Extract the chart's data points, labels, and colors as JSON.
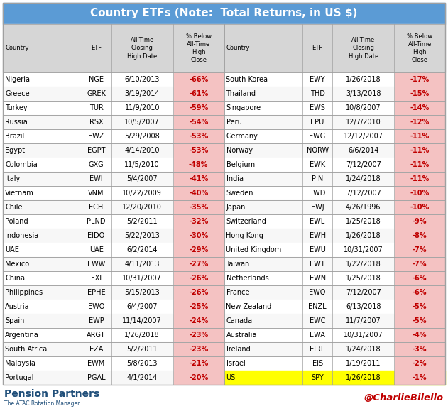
{
  "title": "Country ETFs (Note:  Total Returns, in US $)",
  "title_bg": "#5b9bd5",
  "title_color": "#ffffff",
  "header_bg": "#d6d6d6",
  "pct_neg_bg": "#f4c2c2",
  "pct_neg_color": "#c00000",
  "us_bg": "#ffff00",
  "border_color": "#a0a0a0",
  "left_data": [
    [
      "Nigeria",
      "NGE",
      "6/10/2013",
      "-66%"
    ],
    [
      "Greece",
      "GREK",
      "3/19/2014",
      "-61%"
    ],
    [
      "Turkey",
      "TUR",
      "11/9/2010",
      "-59%"
    ],
    [
      "Russia",
      "RSX",
      "10/5/2007",
      "-54%"
    ],
    [
      "Brazil",
      "EWZ",
      "5/29/2008",
      "-53%"
    ],
    [
      "Egypt",
      "EGPT",
      "4/14/2010",
      "-53%"
    ],
    [
      "Colombia",
      "GXG",
      "11/5/2010",
      "-48%"
    ],
    [
      "Italy",
      "EWI",
      "5/4/2007",
      "-41%"
    ],
    [
      "Vietnam",
      "VNM",
      "10/22/2009",
      "-40%"
    ],
    [
      "Chile",
      "ECH",
      "12/20/2010",
      "-35%"
    ],
    [
      "Poland",
      "PLND",
      "5/2/2011",
      "-32%"
    ],
    [
      "Indonesia",
      "EIDO",
      "5/22/2013",
      "-30%"
    ],
    [
      "UAE",
      "UAE",
      "6/2/2014",
      "-29%"
    ],
    [
      "Mexico",
      "EWW",
      "4/11/2013",
      "-27%"
    ],
    [
      "China",
      "FXI",
      "10/31/2007",
      "-26%"
    ],
    [
      "Philippines",
      "EPHE",
      "5/15/2013",
      "-26%"
    ],
    [
      "Austria",
      "EWO",
      "6/4/2007",
      "-25%"
    ],
    [
      "Spain",
      "EWP",
      "11/14/2007",
      "-24%"
    ],
    [
      "Argentina",
      "ARGT",
      "1/26/2018",
      "-23%"
    ],
    [
      "South Africa",
      "EZA",
      "5/2/2011",
      "-23%"
    ],
    [
      "Malaysia",
      "EWM",
      "5/8/2013",
      "-21%"
    ],
    [
      "Portugal",
      "PGAL",
      "4/1/2014",
      "-20%"
    ]
  ],
  "right_data": [
    [
      "South Korea",
      "EWY",
      "1/26/2018",
      "-17%"
    ],
    [
      "Thailand",
      "THD",
      "3/13/2018",
      "-15%"
    ],
    [
      "Singapore",
      "EWS",
      "10/8/2007",
      "-14%"
    ],
    [
      "Peru",
      "EPU",
      "12/7/2010",
      "-12%"
    ],
    [
      "Germany",
      "EWG",
      "12/12/2007",
      "-11%"
    ],
    [
      "Norway",
      "NORW",
      "6/6/2014",
      "-11%"
    ],
    [
      "Belgium",
      "EWK",
      "7/12/2007",
      "-11%"
    ],
    [
      "India",
      "PIN",
      "1/24/2018",
      "-11%"
    ],
    [
      "Sweden",
      "EWD",
      "7/12/2007",
      "-10%"
    ],
    [
      "Japan",
      "EWJ",
      "4/26/1996",
      "-10%"
    ],
    [
      "Switzerland",
      "EWL",
      "1/25/2018",
      "-9%"
    ],
    [
      "Hong Kong",
      "EWH",
      "1/26/2018",
      "-8%"
    ],
    [
      "United Kingdom",
      "EWU",
      "10/31/2007",
      "-7%"
    ],
    [
      "Taiwan",
      "EWT",
      "1/22/2018",
      "-7%"
    ],
    [
      "Netherlands",
      "EWN",
      "1/25/2018",
      "-6%"
    ],
    [
      "France",
      "EWQ",
      "7/12/2007",
      "-6%"
    ],
    [
      "New Zealand",
      "ENZL",
      "6/13/2018",
      "-5%"
    ],
    [
      "Canada",
      "EWC",
      "11/7/2007",
      "-5%"
    ],
    [
      "Australia",
      "EWA",
      "10/31/2007",
      "-4%"
    ],
    [
      "Ireland",
      "EIRL",
      "1/24/2018",
      "-3%"
    ],
    [
      "Israel",
      "EIS",
      "1/19/2011",
      "-2%"
    ],
    [
      "US",
      "SPY",
      "1/26/2018",
      "-1%"
    ]
  ]
}
